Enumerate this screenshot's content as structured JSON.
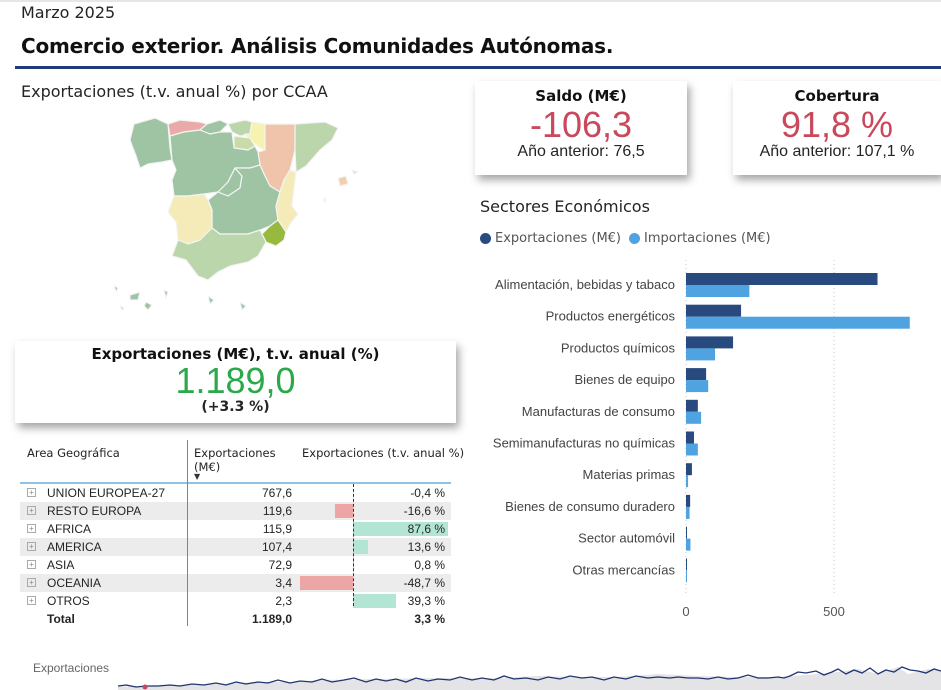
{
  "header": {
    "period": "Marzo 2025",
    "title": "Comercio exterior. Análisis Comunidades Autónomas."
  },
  "map": {
    "title": "Exportaciones (t.v. anual %) por CCAA",
    "palette": {
      "galicia": "#9fc4a4",
      "asturias": "#e9aaa9",
      "cantabria": "#9fc4a4",
      "pais_vasco": "#bcd6ac",
      "navarra": "#f6f2b0",
      "la_rioja": "#c9dca8",
      "aragon": "#f0c3ab",
      "cataluna": "#bcd6ac",
      "castilla_leon": "#9fc4a4",
      "madrid": "#9fc4a4",
      "castilla_la_mancha": "#9fc4a4",
      "extremadura": "#f5ebb8",
      "valencia": "#f5ebb8",
      "murcia": "#96b93e",
      "andalucia": "#bcd6ac",
      "baleares": "#f0cfac",
      "canarias": "#9fc4a4"
    }
  },
  "kpis": {
    "saldo": {
      "title": "Saldo (M€)",
      "value": "-106,3",
      "sub": "Año anterior: 76,5"
    },
    "cobertura": {
      "title": "Cobertura",
      "value": "91,8 %",
      "sub": "Año anterior: 107,1 %"
    },
    "exportaciones": {
      "title": "Exportaciones (M€), t.v. anual (%)",
      "value": "1.189,0",
      "sub": "(+3.3 %)"
    }
  },
  "table": {
    "headers": {
      "area": "Area Geográfica",
      "exp": "Exportaciones (M€)",
      "tv": "Exportaciones (t.v. anual %)"
    },
    "sort_indicator": "▼",
    "rows": [
      {
        "area": "UNION EUROPEA-27",
        "exp": "767,6",
        "tv": "-0,4 %",
        "tv_value": -0.4
      },
      {
        "area": "RESTO EUROPA",
        "exp": "119,6",
        "tv": "-16,6 %",
        "tv_value": -16.6
      },
      {
        "area": "AFRICA",
        "exp": "115,9",
        "tv": "87,6 %",
        "tv_value": 87.6
      },
      {
        "area": "AMERICA",
        "exp": "107,4",
        "tv": "13,6 %",
        "tv_value": 13.6
      },
      {
        "area": "ASIA",
        "exp": "72,9",
        "tv": "0,8 %",
        "tv_value": 0.8
      },
      {
        "area": "OCEANIA",
        "exp": "3,4",
        "tv": "-48,7 %",
        "tv_value": -48.7
      },
      {
        "area": "OTROS",
        "exp": "2,3",
        "tv": "39,3 %",
        "tv_value": 39.3
      }
    ],
    "total": {
      "area": "Total",
      "exp": "1.189,0",
      "tv": "3,3 %"
    },
    "colors": {
      "positive": "#b2e5d4",
      "negative": "#eca6a6"
    }
  },
  "chart_data": {
    "type": "bar",
    "orientation": "horizontal",
    "title": "Sectores Económicos",
    "categories": [
      "Alimentación, bebidas y tabaco",
      "Productos energéticos",
      "Productos químicos",
      "Bienes de equipo",
      "Manufacturas de consumo",
      "Semimanufacturas no químicas",
      "Materias primas",
      "Bienes de consumo duradero",
      "Sector automóvil",
      "Otras mercancías"
    ],
    "series": [
      {
        "name": "Exportaciones (M€)",
        "color": "#284a7e",
        "values": [
          647,
          186,
          159,
          68,
          40,
          27,
          20,
          14,
          2,
          1
        ]
      },
      {
        "name": "Importaciones (M€)",
        "color": "#4ea3e0",
        "values": [
          214,
          756,
          98,
          75,
          51,
          40,
          7,
          12,
          15,
          2
        ]
      }
    ],
    "xlim": [
      0,
      800
    ],
    "xticks": [
      0,
      500
    ],
    "xtick_labels": [
      "0",
      "500"
    ],
    "grid": true,
    "legend": "top-left"
  },
  "sparkline": {
    "label": "Exportaciones"
  }
}
